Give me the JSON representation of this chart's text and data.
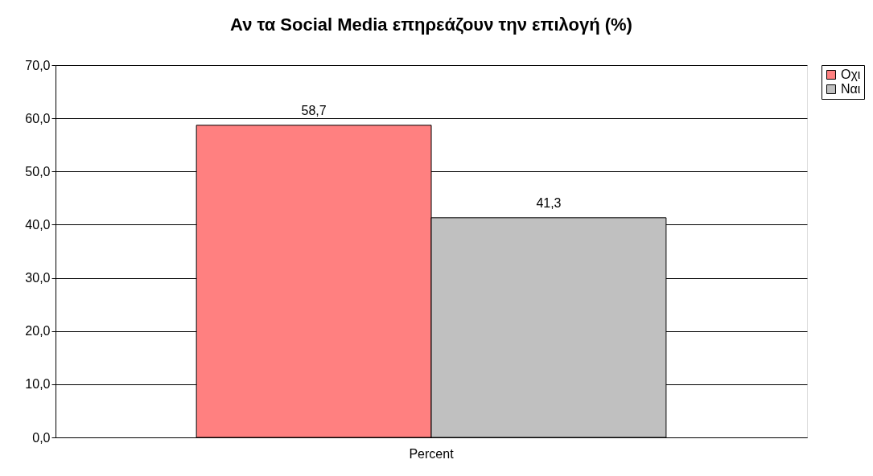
{
  "chart_data": {
    "type": "bar",
    "title": "Αν τα Social Media επηρεάζουν την επιλογή (%)",
    "categories": [
      "Percent"
    ],
    "series": [
      {
        "name": "Οχι",
        "color": "#ff8080",
        "values": [
          58.7
        ],
        "value_labels": [
          "58,7"
        ]
      },
      {
        "name": "Ναι",
        "color": "#c0c0c0",
        "values": [
          41.3
        ],
        "value_labels": [
          "41,3"
        ]
      }
    ],
    "ylim": [
      0,
      70
    ],
    "yticks": [
      {
        "value": 0,
        "label": "0,0"
      },
      {
        "value": 10,
        "label": "10,0"
      },
      {
        "value": 20,
        "label": "20,0"
      },
      {
        "value": 30,
        "label": "30,0"
      },
      {
        "value": 40,
        "label": "40,0"
      },
      {
        "value": 50,
        "label": "50,0"
      },
      {
        "value": 60,
        "label": "60,0"
      },
      {
        "value": 70,
        "label": "70,0"
      }
    ],
    "grid": "y",
    "legend": "right"
  }
}
